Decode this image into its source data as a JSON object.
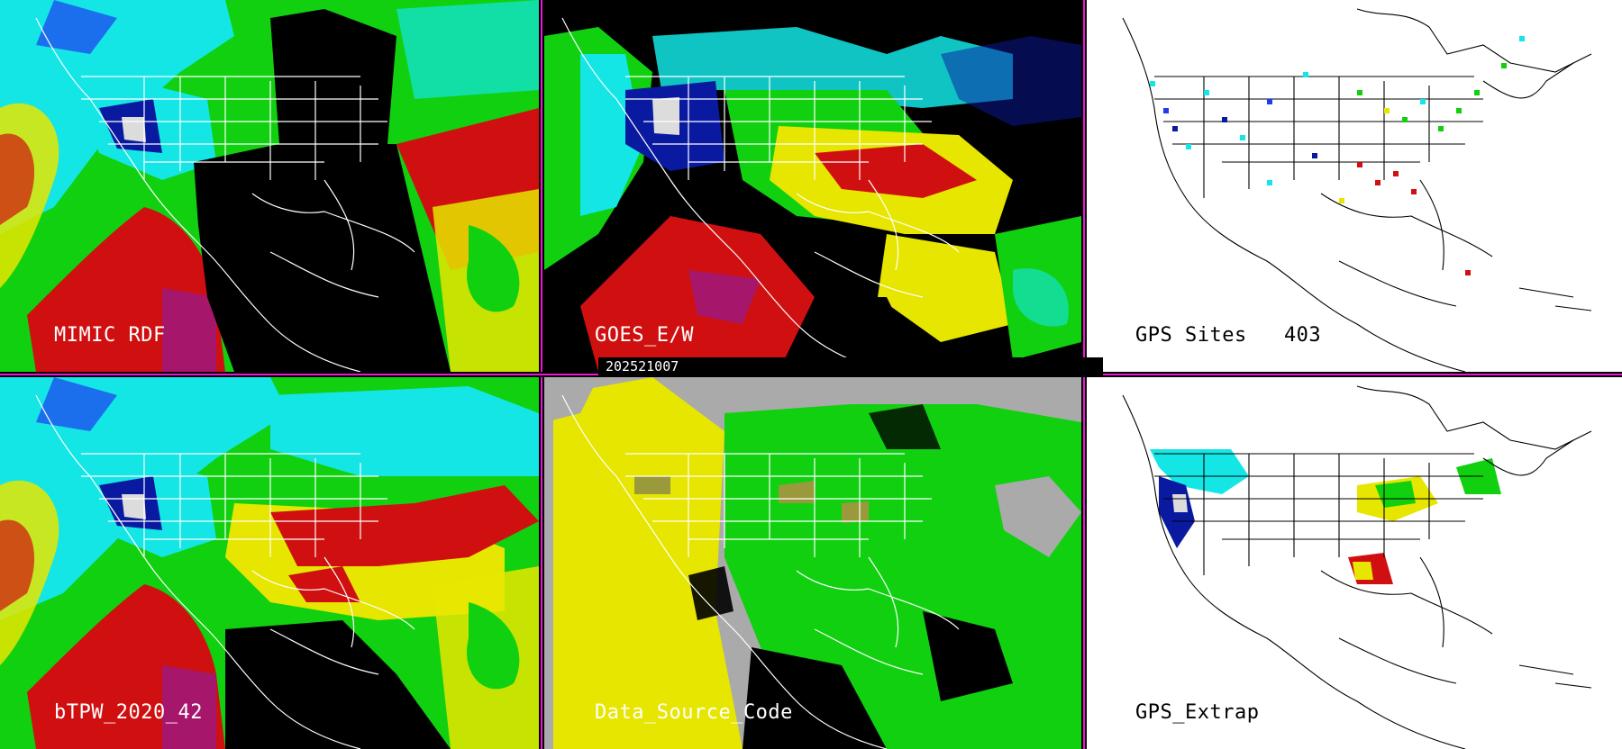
{
  "panels": [
    {
      "label": "MIMIC RDF"
    },
    {
      "label": "GOES_E/W"
    },
    {
      "label": "GPS Sites   403"
    },
    {
      "label": "bTPW_2020_42"
    },
    {
      "label": "Data_Source_Code"
    },
    {
      "label": "GPS_Extrap"
    }
  ],
  "timestamp": "202521007",
  "colors": {
    "separator": "#f012d8",
    "dry": "#dcdcdc",
    "navy": "#0a1aa0",
    "blue": "#1e3cf0",
    "cyan": "#14e6e6",
    "green": "#10d010",
    "yellow": "#e6e600",
    "red": "#d01010",
    "purple": "#8a1aa8",
    "gray": "#aaaaaa",
    "olive": "#9a9a3c",
    "no_data": "#000000",
    "land_bg": "#ffffff",
    "outline": "#ffffff"
  }
}
